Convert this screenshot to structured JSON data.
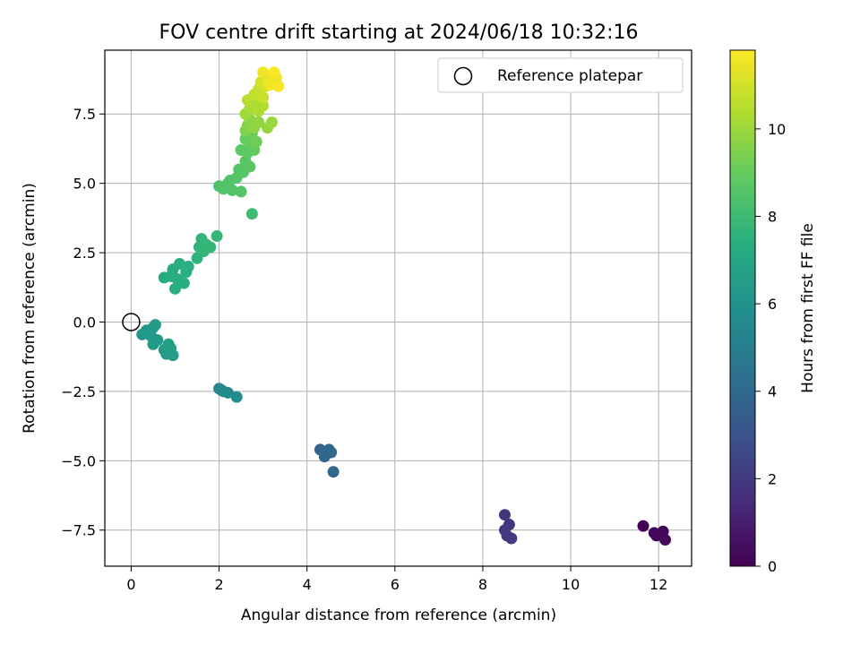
{
  "chart_data": {
    "type": "scatter",
    "title": "FOV centre drift starting at 2024/06/18 10:32:16",
    "xlabel": "Angular distance from reference (arcmin)",
    "ylabel": "Rotation from reference (arcmin)",
    "xlim": [
      -0.6,
      12.75
    ],
    "ylim": [
      -8.8,
      9.8
    ],
    "x_ticks": [
      0,
      2,
      4,
      6,
      8,
      10,
      12
    ],
    "x_tick_labels": [
      "0",
      "2",
      "4",
      "6",
      "8",
      "10",
      "12"
    ],
    "y_ticks": [
      -7.5,
      -5.0,
      -2.5,
      0.0,
      2.5,
      5.0,
      7.5
    ],
    "y_tick_labels": [
      "−7.5",
      "−5.0",
      "−2.5",
      "0.0",
      "2.5",
      "5.0",
      "7.5"
    ],
    "grid": true,
    "legend": {
      "position": "top-right",
      "entries": [
        "Reference platepar"
      ]
    },
    "colorbar": {
      "label": "Hours from first FF file",
      "colormap": "viridis",
      "range": [
        0,
        11.8
      ],
      "ticks": [
        0,
        2,
        4,
        6,
        8,
        10
      ],
      "tick_labels": [
        "0",
        "2",
        "4",
        "6",
        "8",
        "10"
      ]
    },
    "reference_point": {
      "x": 0,
      "y": 0
    },
    "points": [
      [
        11.65,
        -7.35,
        0.0
      ],
      [
        11.9,
        -7.6,
        0.1
      ],
      [
        11.95,
        -7.7,
        0.15
      ],
      [
        12.1,
        -7.55,
        0.2
      ],
      [
        12.15,
        -7.85,
        0.3
      ],
      [
        12.0,
        -7.65,
        0.25
      ],
      [
        8.5,
        -6.95,
        1.8
      ],
      [
        8.6,
        -7.3,
        1.85
      ],
      [
        8.5,
        -7.5,
        1.9
      ],
      [
        8.55,
        -7.7,
        1.95
      ],
      [
        8.65,
        -7.8,
        2.0
      ],
      [
        4.3,
        -4.6,
        3.8
      ],
      [
        4.45,
        -4.75,
        3.85
      ],
      [
        4.5,
        -4.6,
        3.9
      ],
      [
        4.55,
        -4.7,
        3.95
      ],
      [
        4.6,
        -5.4,
        4.0
      ],
      [
        4.4,
        -4.85,
        3.9
      ],
      [
        2.0,
        -2.4,
        5.5
      ],
      [
        2.1,
        -2.5,
        5.55
      ],
      [
        2.2,
        -2.55,
        5.6
      ],
      [
        2.4,
        -2.7,
        5.7
      ],
      [
        2.05,
        -2.45,
        5.5
      ],
      [
        0.25,
        -0.45,
        6.2
      ],
      [
        0.35,
        -0.3,
        6.25
      ],
      [
        0.5,
        -0.2,
        6.3
      ],
      [
        0.5,
        -0.8,
        6.35
      ],
      [
        0.6,
        -0.65,
        6.4
      ],
      [
        0.75,
        -1.0,
        6.45
      ],
      [
        0.85,
        -0.8,
        6.5
      ],
      [
        0.95,
        -1.2,
        6.55
      ],
      [
        0.8,
        -1.15,
        6.5
      ],
      [
        0.9,
        -0.95,
        6.6
      ],
      [
        0.45,
        -0.5,
        6.3
      ],
      [
        0.55,
        -0.1,
        6.35
      ],
      [
        0.75,
        1.6,
        7.2
      ],
      [
        0.95,
        1.9,
        7.25
      ],
      [
        1.0,
        1.2,
        7.3
      ],
      [
        1.05,
        1.55,
        7.3
      ],
      [
        1.1,
        2.1,
        7.35
      ],
      [
        1.2,
        1.4,
        7.4
      ],
      [
        1.25,
        1.8,
        7.45
      ],
      [
        1.3,
        2.0,
        7.45
      ],
      [
        0.9,
        1.65,
        7.3
      ],
      [
        1.5,
        2.3,
        7.6
      ],
      [
        1.55,
        2.7,
        7.65
      ],
      [
        1.6,
        3.0,
        7.7
      ],
      [
        1.65,
        2.55,
        7.7
      ],
      [
        1.7,
        2.8,
        7.75
      ],
      [
        1.8,
        2.7,
        7.75
      ],
      [
        1.95,
        3.1,
        7.8
      ],
      [
        2.0,
        4.9,
        8.4
      ],
      [
        2.1,
        4.8,
        8.45
      ],
      [
        2.2,
        5.0,
        8.5
      ],
      [
        2.3,
        4.75,
        8.5
      ],
      [
        2.4,
        5.2,
        8.55
      ],
      [
        2.5,
        4.7,
        8.6
      ],
      [
        2.25,
        5.1,
        8.5
      ],
      [
        2.45,
        5.5,
        8.6
      ],
      [
        2.55,
        5.4,
        8.65
      ],
      [
        2.6,
        5.8,
        8.7
      ],
      [
        2.7,
        5.6,
        8.75
      ],
      [
        2.75,
        3.9,
        8.0
      ],
      [
        2.5,
        6.2,
        8.8
      ],
      [
        2.65,
        6.1,
        8.85
      ],
      [
        2.7,
        6.4,
        8.9
      ],
      [
        2.8,
        6.2,
        8.95
      ],
      [
        2.6,
        6.6,
        9.0
      ],
      [
        2.75,
        6.8,
        9.1
      ],
      [
        2.85,
        6.5,
        9.15
      ],
      [
        2.6,
        6.9,
        9.5
      ],
      [
        2.65,
        7.1,
        9.6
      ],
      [
        2.7,
        7.3,
        9.7
      ],
      [
        2.8,
        7.0,
        9.75
      ],
      [
        2.9,
        7.2,
        9.8
      ],
      [
        3.1,
        7.0,
        9.9
      ],
      [
        3.2,
        7.2,
        9.95
      ],
      [
        2.6,
        7.5,
        10.1
      ],
      [
        2.7,
        7.7,
        10.2
      ],
      [
        2.8,
        7.9,
        10.3
      ],
      [
        2.9,
        7.6,
        10.35
      ],
      [
        3.0,
        7.8,
        10.4
      ],
      [
        2.65,
        8.0,
        10.5
      ],
      [
        2.8,
        8.2,
        10.7
      ],
      [
        2.9,
        8.4,
        10.8
      ],
      [
        3.0,
        8.1,
        10.85
      ],
      [
        3.05,
        8.5,
        10.95
      ],
      [
        2.95,
        8.65,
        11.05
      ],
      [
        3.1,
        8.7,
        11.3
      ],
      [
        3.2,
        8.9,
        11.4
      ],
      [
        3.0,
        9.0,
        11.5
      ],
      [
        3.3,
        8.8,
        11.55
      ],
      [
        3.15,
        8.55,
        11.6
      ],
      [
        3.35,
        8.5,
        11.7
      ],
      [
        3.25,
        9.0,
        11.8
      ]
    ]
  }
}
